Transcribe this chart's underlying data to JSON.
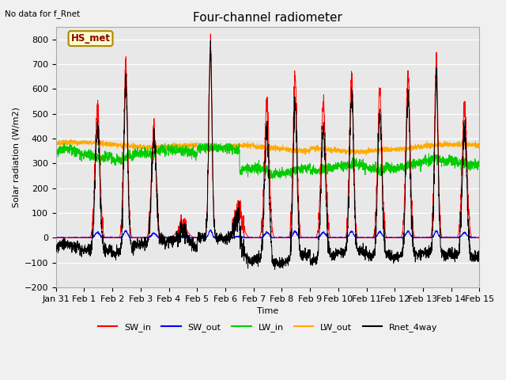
{
  "title": "Four-channel radiometer",
  "topleft_text": "No data for f_Rnet",
  "ylabel": "Solar radiation (W/m2)",
  "xlabel": "Time",
  "ylim": [
    -200,
    850
  ],
  "yticks": [
    -200,
    -100,
    0,
    100,
    200,
    300,
    400,
    500,
    600,
    700,
    800
  ],
  "xtick_labels": [
    "Jan 31",
    "Feb 1",
    "Feb 2",
    "Feb 3",
    "Feb 4",
    "Feb 5",
    "Feb 6",
    "Feb 7",
    "Feb 8",
    "Feb 9",
    "Feb 10",
    "Feb 11",
    "Feb 12",
    "Feb 13",
    "Feb 14",
    "Feb 15"
  ],
  "legend_labels": [
    "SW_in",
    "SW_out",
    "LW_in",
    "LW_out",
    "Rnet_4way"
  ],
  "legend_colors": [
    "#ff0000",
    "#0000ff",
    "#00cc00",
    "#ffaa00",
    "#000000"
  ],
  "box_label": "HS_met",
  "box_facecolor": "#ffffcc",
  "box_edgecolor": "#aa8800",
  "fig_facecolor": "#f0f0f0",
  "plot_bg_color": "#e8e8e8",
  "grid_color": "#ffffff",
  "SW_in_color": "#ff0000",
  "SW_out_color": "#0000ff",
  "LW_in_color": "#00cc00",
  "LW_out_color": "#ffaa00",
  "Rnet_4way_color": "#000000",
  "title_fontsize": 11,
  "label_fontsize": 8,
  "tick_fontsize": 8,
  "legend_fontsize": 8
}
